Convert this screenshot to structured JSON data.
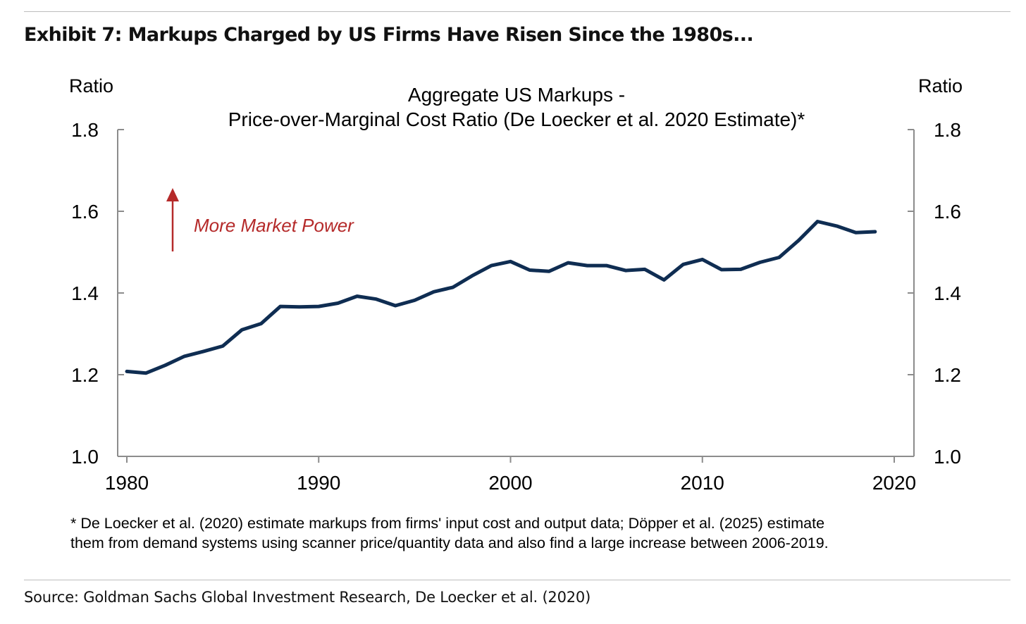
{
  "exhibit": {
    "title": "Exhibit 7: Markups Charged by US Firms Have Risen Since the 1980s..."
  },
  "chart_data": {
    "type": "line",
    "title_line1": "Aggregate US Markups -",
    "title_line2": "Price-over-Marginal Cost Ratio (De Loecker et al. 2020 Estimate)*",
    "ylabel_left": "Ratio",
    "ylabel_right": "Ratio",
    "ylim": [
      1.0,
      1.8
    ],
    "yticks": [
      "1.0",
      "1.2",
      "1.4",
      "1.6",
      "1.8"
    ],
    "xlim": [
      1980,
      2020
    ],
    "xticks": [
      "1980",
      "1990",
      "2000",
      "2010",
      "2020"
    ],
    "grid": false,
    "line_color": "#0f2d52",
    "annotation": {
      "text": "More Market Power",
      "color": "#b52a2a"
    },
    "series": [
      {
        "x": [
          1980,
          1981,
          1982,
          1983,
          1984,
          1985,
          1986,
          1987,
          1988,
          1989,
          1990,
          1991,
          1992,
          1993,
          1994,
          1995,
          1996,
          1997,
          1998,
          1999,
          2000,
          2001,
          2002,
          2003,
          2004,
          2005,
          2006,
          2007,
          2008,
          2009,
          2010,
          2011,
          2012,
          2013,
          2014,
          2015,
          2016,
          2017,
          2018,
          2019
        ],
        "values": [
          1.208,
          1.204,
          1.223,
          1.245,
          1.257,
          1.27,
          1.31,
          1.325,
          1.367,
          1.366,
          1.367,
          1.375,
          1.392,
          1.385,
          1.369,
          1.382,
          1.403,
          1.414,
          1.442,
          1.467,
          1.477,
          1.456,
          1.453,
          1.474,
          1.467,
          1.467,
          1.455,
          1.458,
          1.432,
          1.47,
          1.482,
          1.457,
          1.458,
          1.475,
          1.487,
          1.528,
          1.575,
          1.564,
          1.548,
          1.55
        ]
      }
    ]
  },
  "footnote": {
    "line1": "* De Loecker et al. (2020) estimate markups from firms' input cost and output data; Döpper et al. (2025) estimate",
    "line2": "them from demand systems using scanner price/quantity data and also find a large increase between 2006-2019."
  },
  "source": "Source: Goldman Sachs Global Investment Research, De Loecker et al. (2020)"
}
